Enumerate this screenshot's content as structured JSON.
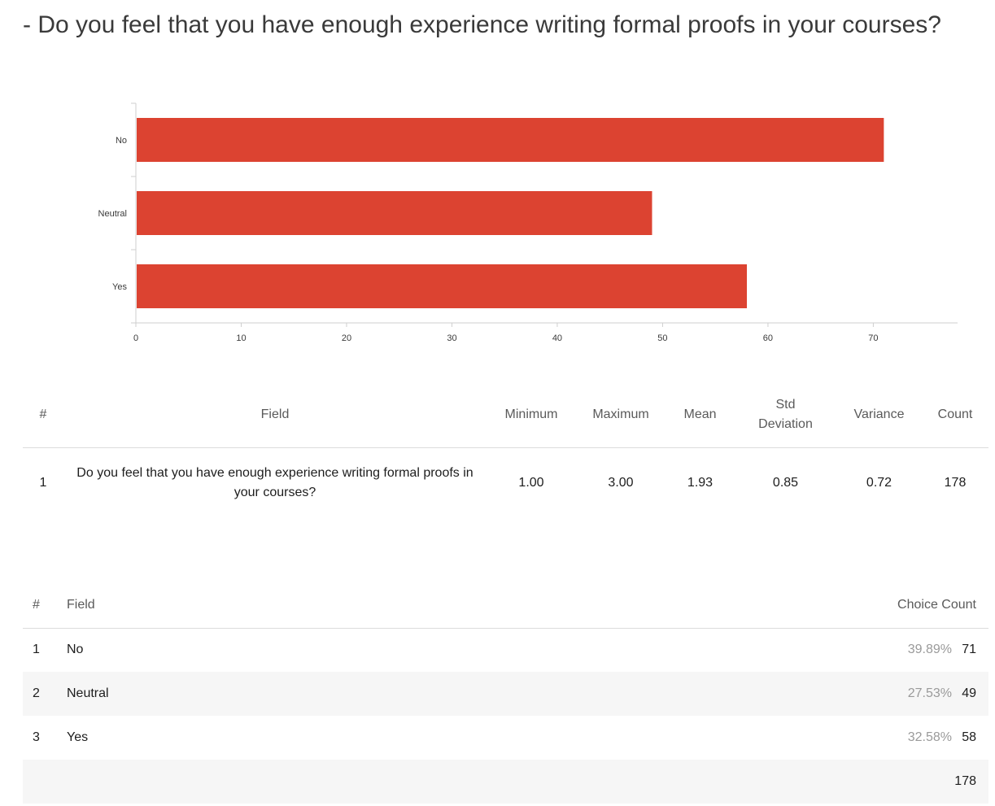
{
  "question": {
    "title": "- Do you feel that you have enough experience writing formal proofs in your courses?"
  },
  "colors": {
    "bar": "#dc4331",
    "axis": "#cfcfcf",
    "grid": "#d9d9d9"
  },
  "chart_data": {
    "type": "bar",
    "orientation": "horizontal",
    "categories": [
      "No",
      "Neutral",
      "Yes"
    ],
    "values": [
      71,
      49,
      58
    ],
    "xticks": [
      0,
      10,
      20,
      30,
      40,
      50,
      60,
      70
    ],
    "xlim": [
      0,
      78
    ],
    "title": "",
    "xlabel": "",
    "ylabel": "",
    "grid": false
  },
  "stats_table": {
    "headers": {
      "hash": "#",
      "field": "Field",
      "minimum": "Minimum",
      "maximum": "Maximum",
      "mean": "Mean",
      "std_deviation": "Std Deviation",
      "variance": "Variance",
      "count": "Count"
    },
    "row": {
      "hash": "1",
      "field": "Do you feel that you have enough experience writing formal proofs in your courses?",
      "minimum": "1.00",
      "maximum": "3.00",
      "mean": "1.93",
      "std_deviation": "0.85",
      "variance": "0.72",
      "count": "178"
    }
  },
  "choice_table": {
    "headers": {
      "hash": "#",
      "field": "Field",
      "choice_count": "Choice Count"
    },
    "rows": [
      {
        "hash": "1",
        "field": "No",
        "percent": "39.89%",
        "count": "71"
      },
      {
        "hash": "2",
        "field": "Neutral",
        "percent": "27.53%",
        "count": "49"
      },
      {
        "hash": "3",
        "field": "Yes",
        "percent": "32.58%",
        "count": "58"
      }
    ],
    "total": "178"
  }
}
